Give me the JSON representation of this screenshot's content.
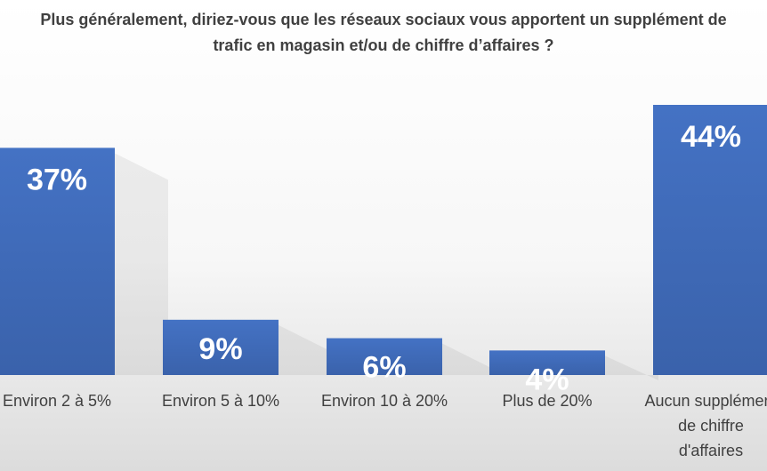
{
  "chart_data": {
    "type": "bar",
    "title": "Plus généralement, diriez-vous que les réseaux sociaux vous apportent un supplément de trafic en magasin et/ou de chiffre d’affaires ?",
    "categories": [
      "Environ 2 à 5%",
      "Environ 5 à 10%",
      "Environ 10 à 20%",
      "Plus de 20%",
      "Aucun supplément de chiffre d'affaires"
    ],
    "category_display": [
      "Environ 2 à 5%",
      "Environ 5 à 10%",
      "Environ 10 à 20%",
      "Plus de 20%",
      "Aucun supplément\nde chiffre\nd'affaires"
    ],
    "values": [
      37,
      9,
      6,
      4,
      44
    ],
    "value_labels": [
      "37%",
      "9%",
      "6%",
      "4%",
      "44%"
    ],
    "unit": "%",
    "ylim": [
      0,
      44
    ],
    "grid": false,
    "legend": "none",
    "colors": {
      "bar": "#4472C4",
      "bar_dark": "#3A62AB",
      "label": "#ffffff",
      "text": "#404040"
    }
  }
}
